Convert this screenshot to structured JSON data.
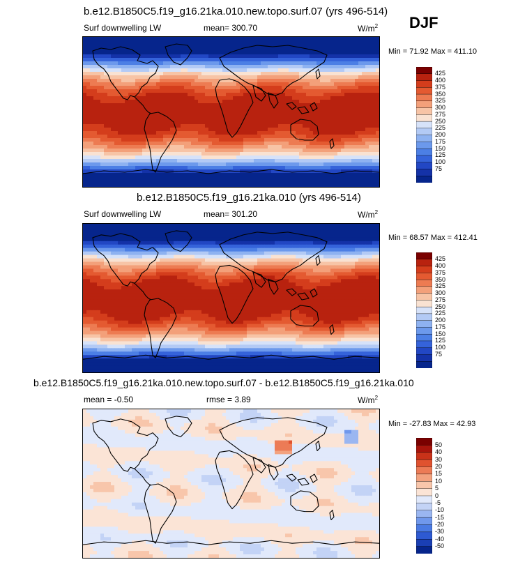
{
  "season": "DJF",
  "palette": {
    "diff_colors": [
      "#06258c",
      "#1a3fb4",
      "#2e5ad2",
      "#4a7ae3",
      "#7098ec",
      "#9ab6f1",
      "#c3d3f6",
      "#e1e9fb",
      "#fbe4d6",
      "#f8c6ab",
      "#f3a27f",
      "#ec7b56",
      "#e0522f",
      "#c93219",
      "#a8140c",
      "#7a0000"
    ],
    "abs_colors": [
      "#06258c",
      "#1432a8",
      "#2247c4",
      "#3563da",
      "#4c7fe5",
      "#6c99ec",
      "#8eb2f1",
      "#b3caf5",
      "#d6e2f9",
      "#f9e2d2",
      "#f7c4a6",
      "#f3a07a",
      "#ed7b52",
      "#e45a31",
      "#d43d1c",
      "#b8220f",
      "#7a0000"
    ]
  },
  "chart_data": [
    {
      "type": "heatmap",
      "title": "b.e12.B1850C5.f19_g16.21ka.010.new.topo.surf.07 (yrs 496-514)",
      "variable": "Surf downwelling LW",
      "mean_text": "mean= 300.70",
      "units_base": "W/m",
      "units_exp": "2",
      "minmax_text": "Min =  71.92 Max = 411.10",
      "min": 71.92,
      "max": 411.1,
      "mean": 300.7,
      "levels": [
        "425",
        "400",
        "375",
        "350",
        "325",
        "300",
        "275",
        "250",
        "225",
        "200",
        "175",
        "150",
        "125",
        "100",
        "75"
      ]
    },
    {
      "type": "heatmap",
      "title": "b.e12.B1850C5.f19_g16.21ka.010 (yrs 496-514)",
      "variable": "Surf downwelling LW",
      "mean_text": "mean= 301.20",
      "units_base": "W/m",
      "units_exp": "2",
      "minmax_text": "Min =  68.57 Max = 412.41",
      "min": 68.57,
      "max": 412.41,
      "mean": 301.2,
      "levels": [
        "425",
        "400",
        "375",
        "350",
        "325",
        "300",
        "275",
        "250",
        "225",
        "200",
        "175",
        "150",
        "125",
        "100",
        "75"
      ]
    },
    {
      "type": "heatmap",
      "title": "b.e12.B1850C5.f19_g16.21ka.010.new.topo.surf.07 - b.e12.B1850C5.f19_g16.21ka.010",
      "mean_text": "mean =   -0.50",
      "rmse_text": "rmse =    3.89",
      "units_base": "W/m",
      "units_exp": "2",
      "minmax_text": "Min = -27.83 Max =  42.93",
      "min": -27.83,
      "max": 42.93,
      "mean": -0.5,
      "rmse": 3.89,
      "levels": [
        "50",
        "40",
        "30",
        "20",
        "15",
        "10",
        "5",
        "0",
        "-5",
        "-10",
        "-15",
        "-20",
        "-30",
        "-40",
        "-50"
      ]
    }
  ]
}
